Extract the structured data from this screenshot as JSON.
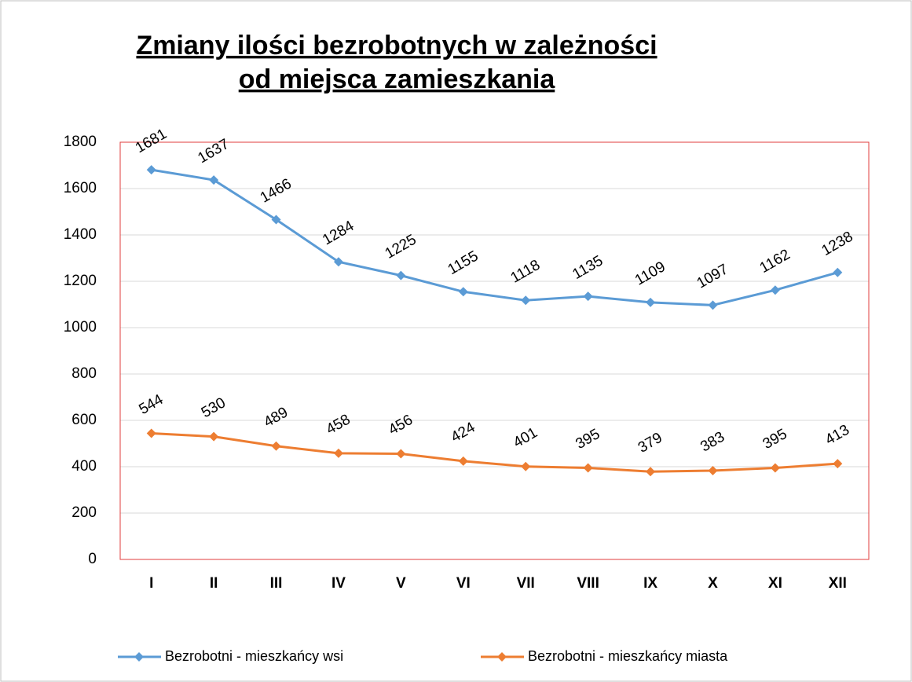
{
  "chart_data": {
    "type": "line",
    "title": [
      "Zmiany ilości bezrobotnych w zależności",
      "od miejsca zamieszkania"
    ],
    "categories": [
      "I",
      "II",
      "III",
      "IV",
      "V",
      "VI",
      "VII",
      "VIII",
      "IX",
      "X",
      "XI",
      "XII"
    ],
    "series": [
      {
        "name": "Bezrobotni - mieszkańcy wsi",
        "color": "#5b9bd5",
        "values": [
          1681,
          1637,
          1466,
          1284,
          1225,
          1155,
          1118,
          1135,
          1109,
          1097,
          1162,
          1238
        ]
      },
      {
        "name": "Bezrobotni - mieszkańcy miasta",
        "color": "#ed7d31",
        "values": [
          544,
          530,
          489,
          458,
          456,
          424,
          401,
          395,
          379,
          383,
          395,
          413
        ]
      }
    ],
    "ylim": [
      0,
      1800
    ],
    "yticks": [
      0,
      200,
      400,
      600,
      800,
      1000,
      1200,
      1400,
      1600,
      1800
    ],
    "grid": true,
    "legend": "bottom"
  }
}
